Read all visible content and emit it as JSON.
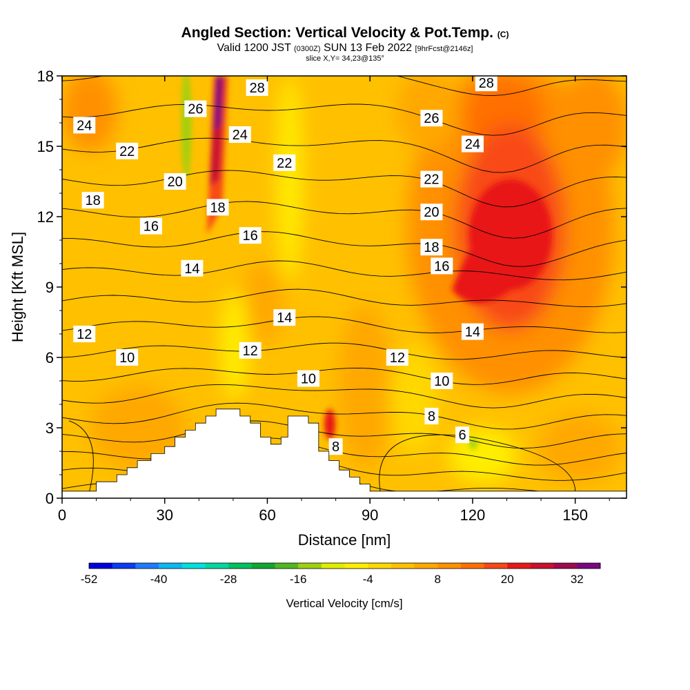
{
  "chart_data": {
    "type": "heatmap",
    "title": "Angled Section: Vertical Velocity & Pot.Temp.",
    "title_unit": "(C)",
    "subtitle_main": "Valid 1200 JST",
    "subtitle_utc": "(0300Z)",
    "subtitle_date": "SUN 13 Feb 2022",
    "subtitle_fcst": "[9hrFcst@2146z]",
    "slice_label": "slice X,Y= 34,23@135°",
    "xlabel": "Distance [nm]",
    "ylabel": "Height [Kft MSL]",
    "xlim": [
      0,
      165
    ],
    "ylim": [
      0,
      18
    ],
    "x_ticks": [
      "0",
      "30",
      "60",
      "90",
      "120",
      "150"
    ],
    "y_ticks": [
      "0",
      "3",
      "6",
      "9",
      "12",
      "15",
      "18"
    ],
    "colorbar": {
      "label": "Vertical Velocity [cm/s]",
      "range": [
        -52,
        36
      ],
      "tick_labels": [
        "-52",
        "-40",
        "-28",
        "-16",
        "-4",
        "8",
        "20",
        "32"
      ],
      "colors": [
        "#0000dd",
        "#0a3cf0",
        "#1e7bff",
        "#0cb8f4",
        "#00e0e0",
        "#00d8a0",
        "#00c060",
        "#10a830",
        "#50b820",
        "#a0d010",
        "#e0ec00",
        "#ffee00",
        "#ffd800",
        "#ffc000",
        "#ffa800",
        "#ff9000",
        "#ff7000",
        "#f84818",
        "#e81818",
        "#c81030",
        "#a00850",
        "#780880"
      ]
    },
    "contour_labels": [
      {
        "text": "28",
        "x": 57,
        "y": 17.5
      },
      {
        "text": "28",
        "x": 124,
        "y": 17.7
      },
      {
        "text": "26",
        "x": 39,
        "y": 16.6
      },
      {
        "text": "26",
        "x": 108,
        "y": 16.2
      },
      {
        "text": "24",
        "x": 6.5,
        "y": 15.9
      },
      {
        "text": "24",
        "x": 52,
        "y": 15.5
      },
      {
        "text": "24",
        "x": 120,
        "y": 15.1
      },
      {
        "text": "22",
        "x": 19,
        "y": 14.8
      },
      {
        "text": "22",
        "x": 65,
        "y": 14.3
      },
      {
        "text": "22",
        "x": 108,
        "y": 13.6
      },
      {
        "text": "20",
        "x": 33,
        "y": 13.5
      },
      {
        "text": "20",
        "x": 108,
        "y": 12.2
      },
      {
        "text": "18",
        "x": 9,
        "y": 12.7
      },
      {
        "text": "18",
        "x": 45.5,
        "y": 12.4
      },
      {
        "text": "18",
        "x": 108,
        "y": 10.7
      },
      {
        "text": "16",
        "x": 26,
        "y": 11.6
      },
      {
        "text": "16",
        "x": 55,
        "y": 11.2
      },
      {
        "text": "16",
        "x": 111,
        "y": 9.9
      },
      {
        "text": "14",
        "x": 38,
        "y": 9.8
      },
      {
        "text": "14",
        "x": 65,
        "y": 7.7
      },
      {
        "text": "14",
        "x": 120,
        "y": 7.1
      },
      {
        "text": "12",
        "x": 6.5,
        "y": 7.0
      },
      {
        "text": "12",
        "x": 55,
        "y": 6.3
      },
      {
        "text": "12",
        "x": 98,
        "y": 6.0
      },
      {
        "text": "10",
        "x": 19,
        "y": 6.0
      },
      {
        "text": "10",
        "x": 72,
        "y": 5.1
      },
      {
        "text": "10",
        "x": 111,
        "y": 5.0
      },
      {
        "text": "8",
        "x": 108,
        "y": 3.5
      },
      {
        "text": "8",
        "x": 80,
        "y": 2.2
      },
      {
        "text": "6",
        "x": 117,
        "y": 2.7
      }
    ],
    "terrain": [
      [
        0,
        0.3
      ],
      [
        10,
        0.3
      ],
      [
        10,
        0.7
      ],
      [
        16,
        0.7
      ],
      [
        16,
        1.0
      ],
      [
        19,
        1.0
      ],
      [
        19,
        1.3
      ],
      [
        22,
        1.3
      ],
      [
        22,
        1.6
      ],
      [
        26,
        1.6
      ],
      [
        26,
        1.9
      ],
      [
        30,
        1.9
      ],
      [
        30,
        2.2
      ],
      [
        33,
        2.2
      ],
      [
        33,
        2.6
      ],
      [
        36,
        2.6
      ],
      [
        36,
        2.9
      ],
      [
        39,
        2.9
      ],
      [
        39,
        3.2
      ],
      [
        42,
        3.2
      ],
      [
        42,
        3.5
      ],
      [
        45,
        3.5
      ],
      [
        45,
        3.8
      ],
      [
        52,
        3.8
      ],
      [
        52,
        3.5
      ],
      [
        55,
        3.5
      ],
      [
        55,
        3.2
      ],
      [
        58,
        3.2
      ],
      [
        58,
        2.6
      ],
      [
        61,
        2.6
      ],
      [
        61,
        2.3
      ],
      [
        64,
        2.3
      ],
      [
        64,
        2.6
      ],
      [
        66,
        2.6
      ],
      [
        66,
        3.5
      ],
      [
        72,
        3.5
      ],
      [
        72,
        3.2
      ],
      [
        75,
        3.2
      ],
      [
        75,
        2.0
      ],
      [
        78,
        2.0
      ],
      [
        78,
        1.6
      ],
      [
        81,
        1.6
      ],
      [
        81,
        1.2
      ],
      [
        84,
        1.2
      ],
      [
        84,
        0.9
      ],
      [
        87,
        0.9
      ],
      [
        87,
        0.6
      ],
      [
        90,
        0.6
      ],
      [
        90,
        0.3
      ],
      [
        165,
        0.3
      ]
    ]
  }
}
